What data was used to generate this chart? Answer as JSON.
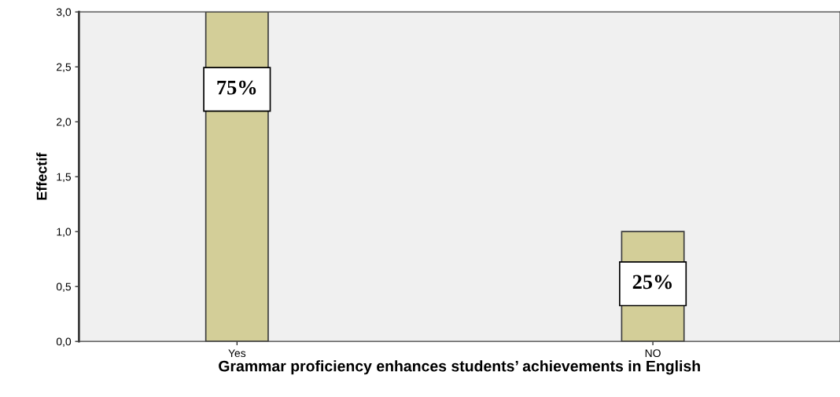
{
  "chart_data": {
    "type": "bar",
    "xlabel": "Grammar proficiency enhances students’ achievements in English",
    "ylabel": "Effectif",
    "categories": [
      "Yes",
      "NO"
    ],
    "values": [
      3,
      1
    ],
    "color": "#d3ce98",
    "ylim": [
      0,
      3
    ],
    "yticks": [
      {
        "value": 0,
        "label": "0,0"
      },
      {
        "value": 0.5,
        "label": "0,5"
      },
      {
        "value": 1,
        "label": "1,0"
      },
      {
        "value": 1.5,
        "label": "1,5"
      },
      {
        "value": 2,
        "label": "2,0"
      },
      {
        "value": 2.5,
        "label": "2,5"
      },
      {
        "value": 3,
        "label": "3,0"
      }
    ],
    "annotations": [
      "75%",
      "25%"
    ],
    "grid": false
  }
}
